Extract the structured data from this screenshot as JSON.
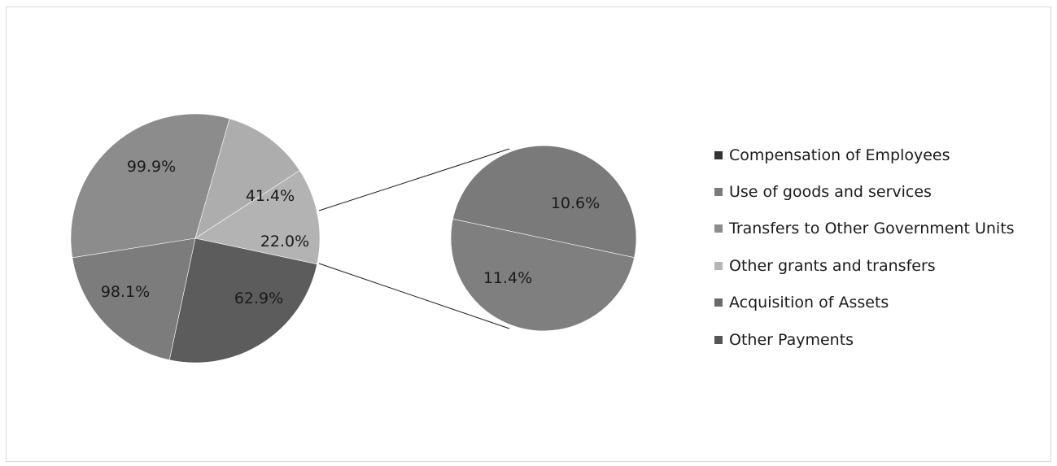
{
  "chart_data": {
    "type": "pie",
    "subtype": "pie-of-pie",
    "title": "",
    "legend_position": "right",
    "main_pie": {
      "slices": [
        {
          "label": "99.9%",
          "series": "Transfers to Other Government Units",
          "color": "#8c8c8c"
        },
        {
          "label": "41.4%",
          "series": "Other grants and transfers",
          "color": "#adadad"
        },
        {
          "label": "22.0%",
          "series": "Other grants and transfers",
          "color": "#b3b3b3"
        },
        {
          "label": "62.9%",
          "series": "Compensation of Employees",
          "color": "#5c5c5c"
        },
        {
          "label": "98.1%",
          "series": "Use of goods and services",
          "color": "#7c7c7c"
        }
      ]
    },
    "secondary_pie": {
      "slices": [
        {
          "label": "10.6%",
          "series": "Acquisition of Assets",
          "color": "#7a7a7a"
        },
        {
          "label": "11.4%",
          "series": "Other Payments",
          "color": "#7f7f7f"
        }
      ]
    },
    "legend": [
      {
        "label": "Compensation of Employees",
        "color": "#333333"
      },
      {
        "label": "Use of goods and services",
        "color": "#7a7a7a"
      },
      {
        "label": "Transfers to Other Government Units",
        "color": "#8c8c8c"
      },
      {
        "label": "Other grants and transfers",
        "color": "#b5b5b5"
      },
      {
        "label": "Acquisition of Assets",
        "color": "#6a6a6a"
      },
      {
        "label": "Other Payments",
        "color": "#555555"
      }
    ]
  }
}
